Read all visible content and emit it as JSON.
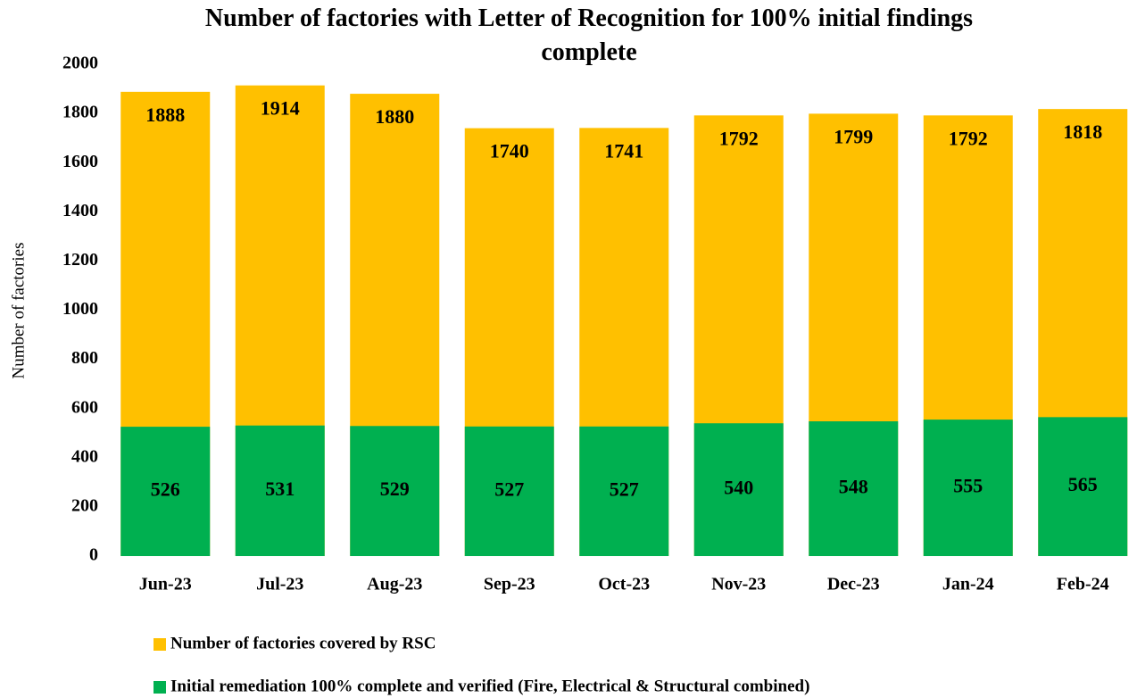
{
  "chart_data": {
    "type": "bar",
    "title": "Number of factories with Letter of Recognition for 100% initial findings complete",
    "y_label": "Number of factories",
    "categories": [
      "Jun-23",
      "Jul-23",
      "Aug-23",
      "Sep-23",
      "Oct-23",
      "Nov-23",
      "Dec-23",
      "Jan-24",
      "Feb-24"
    ],
    "series": [
      {
        "name": "Number of factories covered by RSC",
        "color": "#ffc000",
        "values": [
          1888,
          1914,
          1880,
          1740,
          1741,
          1792,
          1799,
          1792,
          1818
        ]
      },
      {
        "name": "Initial remediation 100% complete and verified (Fire, Electrical & Structural combined)",
        "color": "#00b050",
        "values": [
          526,
          531,
          529,
          527,
          527,
          540,
          548,
          555,
          565
        ]
      }
    ],
    "ylim": [
      0,
      2000
    ],
    "yticks": [
      0,
      200,
      400,
      600,
      800,
      1000,
      1200,
      1400,
      1600,
      1800,
      2000
    ],
    "grid": false,
    "legend": "bottom"
  }
}
